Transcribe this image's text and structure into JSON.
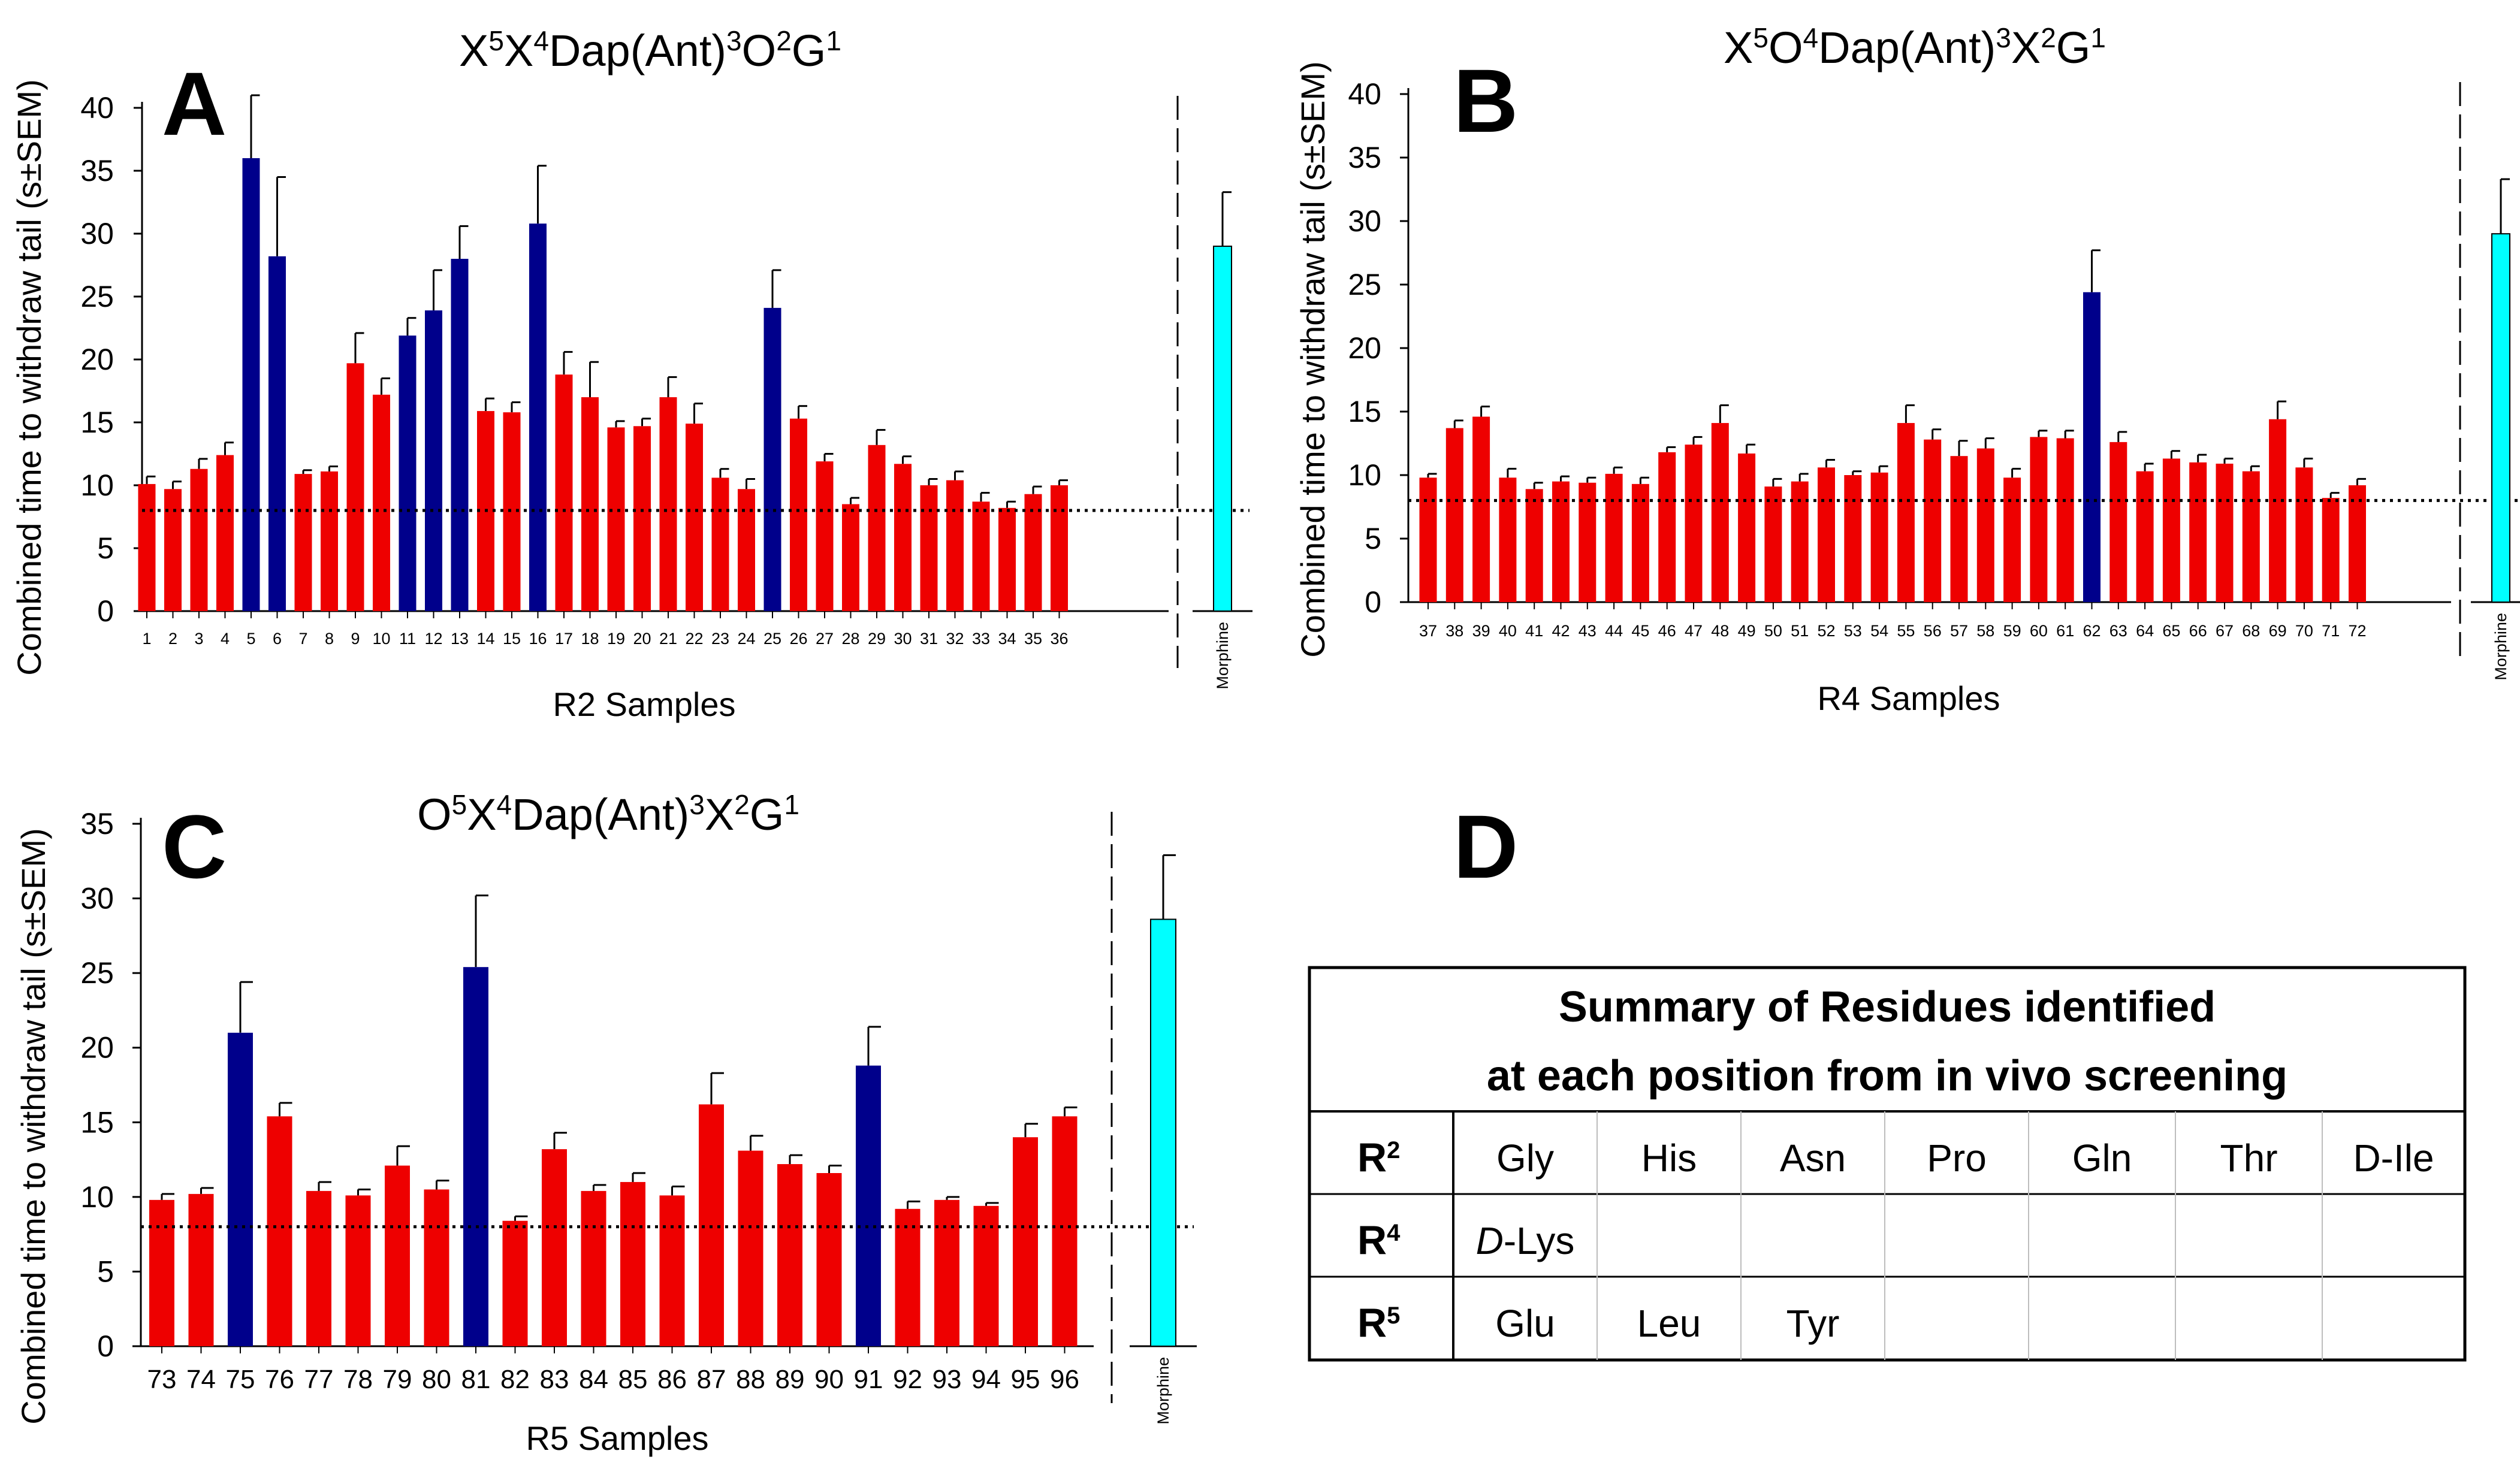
{
  "chart_data": [
    {
      "panel": "A",
      "type": "bar",
      "title": "X5X4Dap(Ant)3O2G1",
      "title_parts": [
        {
          "t": "X"
        },
        {
          "t": "5",
          "sup": true
        },
        {
          "t": "X"
        },
        {
          "t": "4",
          "sup": true
        },
        {
          "t": "Dap(Ant)"
        },
        {
          "t": "3",
          "sup": true
        },
        {
          "t": "O"
        },
        {
          "t": "2",
          "sup": true
        },
        {
          "t": "G"
        },
        {
          "t": "1",
          "sup": true
        }
      ],
      "ylabel": "Combined time to withdraw tail (s±SEM)",
      "xlabel": "R2 Samples",
      "ylim": [
        0,
        40
      ],
      "yticks": [
        "0",
        "5",
        "10",
        "15",
        "20",
        "25",
        "30",
        "35",
        "40"
      ],
      "baseline": 8,
      "categories": [
        "1",
        "2",
        "3",
        "4",
        "5",
        "6",
        "7",
        "8",
        "9",
        "10",
        "11",
        "12",
        "13",
        "14",
        "15",
        "16",
        "17",
        "18",
        "19",
        "20",
        "21",
        "22",
        "23",
        "24",
        "25",
        "26",
        "27",
        "28",
        "29",
        "30",
        "31",
        "32",
        "33",
        "34",
        "35",
        "36"
      ],
      "values": [
        10.1,
        9.7,
        11.3,
        12.4,
        36,
        28.2,
        10.9,
        11.1,
        19.7,
        17.2,
        21.9,
        23.9,
        28,
        15.9,
        15.8,
        30.8,
        18.8,
        17,
        14.6,
        14.7,
        17,
        14.9,
        10.6,
        9.7,
        24.1,
        15.3,
        11.9,
        8.5,
        13.2,
        11.7,
        10,
        10.4,
        8.7,
        8.2,
        9.3,
        10
      ],
      "errors": [
        0.6,
        0.6,
        0.8,
        1,
        5,
        6.3,
        0.3,
        0.4,
        2.4,
        1.3,
        1.4,
        3.2,
        2.6,
        1,
        0.8,
        4.6,
        1.8,
        2.8,
        0.5,
        0.6,
        1.6,
        1.6,
        0.7,
        0.8,
        3,
        1,
        0.6,
        0.5,
        1.2,
        0.6,
        0.5,
        0.7,
        0.7,
        0.5,
        0.6,
        0.4
      ],
      "highlight": [
        "5",
        "6",
        "11",
        "12",
        "13",
        "16",
        "25"
      ],
      "reference": {
        "label": "Morphine",
        "value": 29,
        "error": 4.3
      },
      "colors": {
        "bar": "#ee0000",
        "highlight": "#00008b",
        "reference": "#00ffff"
      }
    },
    {
      "panel": "B",
      "type": "bar",
      "title": "X5O4Dap(Ant)3X2G1",
      "title_parts": [
        {
          "t": "X"
        },
        {
          "t": "5",
          "sup": true
        },
        {
          "t": "O"
        },
        {
          "t": "4",
          "sup": true
        },
        {
          "t": "Dap(Ant)"
        },
        {
          "t": "3",
          "sup": true
        },
        {
          "t": "X"
        },
        {
          "t": "2",
          "sup": true
        },
        {
          "t": "G"
        },
        {
          "t": "1",
          "sup": true
        }
      ],
      "ylabel": "Combined time to withdraw tail (s±SEM)",
      "xlabel": "R4 Samples",
      "ylim": [
        0,
        40
      ],
      "yticks": [
        "0",
        "5",
        "10",
        "15",
        "20",
        "25",
        "30",
        "35",
        "40"
      ],
      "baseline": 8,
      "categories": [
        "37",
        "38",
        "39",
        "40",
        "41",
        "42",
        "43",
        "44",
        "45",
        "46",
        "47",
        "48",
        "49",
        "50",
        "51",
        "52",
        "53",
        "54",
        "55",
        "56",
        "57",
        "58",
        "59",
        "60",
        "61",
        "62",
        "63",
        "64",
        "65",
        "66",
        "67",
        "68",
        "69",
        "70",
        "71",
        "72"
      ],
      "values": [
        9.8,
        13.7,
        14.6,
        9.8,
        8.9,
        9.5,
        9.4,
        10.1,
        9.3,
        11.8,
        12.4,
        14.1,
        11.7,
        9.1,
        9.5,
        10.6,
        10,
        10.2,
        14.1,
        12.8,
        11.5,
        12.1,
        9.8,
        13,
        12.9,
        24.4,
        12.6,
        10.3,
        11.3,
        11,
        10.9,
        10.3,
        14.4,
        10.6,
        8.2,
        9.2
      ],
      "errors": [
        0.3,
        0.6,
        0.8,
        0.7,
        0.5,
        0.4,
        0.4,
        0.5,
        0.5,
        0.4,
        0.6,
        1.4,
        0.7,
        0.6,
        0.6,
        0.6,
        0.3,
        0.5,
        1.4,
        0.8,
        1.2,
        0.8,
        0.7,
        0.5,
        0.6,
        3.3,
        0.8,
        0.6,
        0.6,
        0.6,
        0.4,
        0.4,
        1.4,
        0.7,
        0.4,
        0.5
      ],
      "highlight": [
        "62"
      ],
      "reference": {
        "label": "Morphine",
        "value": 29,
        "error": 4.3
      },
      "colors": {
        "bar": "#ee0000",
        "highlight": "#00008b",
        "reference": "#00ffff"
      }
    },
    {
      "panel": "C",
      "type": "bar",
      "title": "O5X4Dap(Ant)3X2G1",
      "title_parts": [
        {
          "t": "O"
        },
        {
          "t": "5",
          "sup": true
        },
        {
          "t": "X"
        },
        {
          "t": "4",
          "sup": true
        },
        {
          "t": "Dap(Ant)"
        },
        {
          "t": "3",
          "sup": true
        },
        {
          "t": "X"
        },
        {
          "t": "2",
          "sup": true
        },
        {
          "t": "G"
        },
        {
          "t": "1",
          "sup": true
        }
      ],
      "ylabel": "Combined time to withdraw tail (s±SEM)",
      "xlabel": "R5 Samples",
      "ylim": [
        0,
        35
      ],
      "yticks": [
        "0",
        "5",
        "10",
        "15",
        "20",
        "25",
        "30",
        "35"
      ],
      "baseline": 8,
      "categories": [
        "73",
        "74",
        "75",
        "76",
        "77",
        "78",
        "79",
        "80",
        "81",
        "82",
        "83",
        "84",
        "85",
        "86",
        "87",
        "88",
        "89",
        "90",
        "91",
        "92",
        "93",
        "94",
        "95",
        "96"
      ],
      "values": [
        9.8,
        10.2,
        21,
        15.4,
        10.4,
        10.1,
        12.1,
        10.5,
        25.4,
        8.4,
        13.2,
        10.4,
        11,
        10.1,
        16.2,
        13.1,
        12.2,
        11.6,
        18.8,
        9.2,
        9.8,
        9.4,
        14,
        15.4
      ],
      "errors": [
        0.4,
        0.4,
        3.4,
        0.9,
        0.6,
        0.4,
        1.3,
        0.6,
        4.8,
        0.3,
        1.1,
        0.4,
        0.6,
        0.6,
        2.1,
        1,
        0.6,
        0.5,
        2.6,
        0.5,
        0.2,
        0.2,
        0.9,
        0.6
      ],
      "highlight": [
        "75",
        "81",
        "91"
      ],
      "reference": {
        "label": "Morphine",
        "value": 28.6,
        "error": 4.3
      },
      "colors": {
        "bar": "#ee0000",
        "highlight": "#00008b",
        "reference": "#00ffff"
      }
    },
    {
      "panel": "D",
      "type": "table",
      "title_lines": [
        "Summary of Residues identified",
        "at each position from in vivo screening"
      ],
      "rows": [
        {
          "base": "R",
          "sup": "2",
          "cells": [
            "Gly",
            "His",
            "Asn",
            "Pro",
            "Gln",
            "Thr",
            "D-Ile"
          ]
        },
        {
          "base": "R",
          "sup": "4",
          "cells": [
            "D-Lys",
            "",
            "",
            "",
            "",
            "",
            ""
          ],
          "italic_prefix": "D"
        },
        {
          "base": "R",
          "sup": "5",
          "cells": [
            "Glu",
            "Leu",
            "Tyr",
            "",
            "",
            "",
            ""
          ]
        }
      ]
    }
  ]
}
